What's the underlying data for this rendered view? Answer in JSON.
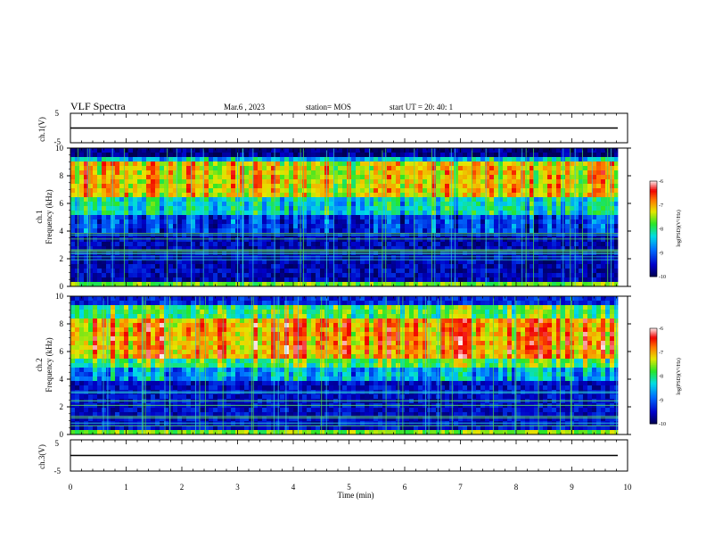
{
  "header": {
    "title": "VLF Spectra",
    "date": "Mar.6 , 2023",
    "station": "station= MOS",
    "start": "start UT = 20: 40: 1"
  },
  "chart_data": [
    {
      "type": "line",
      "name_label": "ch.1(V)",
      "ylabel": "ch.1(V)",
      "yticks": [
        "5",
        "-5"
      ],
      "ylim": [
        -5,
        5
      ],
      "xlim": [
        0,
        10
      ],
      "baseline": 0
    },
    {
      "type": "heatmap",
      "ylabel_top": "ch.1",
      "ylabel": "Frequency (kHz)",
      "yticks": [
        "0",
        "2",
        "4",
        "6",
        "8",
        "10"
      ],
      "ylim": [
        0,
        10
      ],
      "xlim": [
        0,
        10
      ],
      "colorbar": {
        "ticks": [
          "-6",
          "-7",
          "-8",
          "-9",
          "-10"
        ],
        "label": "log(PSD)(V²/Hz)",
        "range": [
          -10,
          -6
        ]
      },
      "bands": [
        {
          "from": 0,
          "to": 0.4,
          "level": -7.6
        },
        {
          "from": 0.4,
          "to": 4.0,
          "level": -9.6
        },
        {
          "from": 4.0,
          "to": 5.3,
          "level": -9.2
        },
        {
          "from": 5.3,
          "to": 6.5,
          "level": -8.3
        },
        {
          "from": 6.5,
          "to": 9.0,
          "level": -7.2
        },
        {
          "from": 9.0,
          "to": 9.5,
          "level": -8.5
        },
        {
          "from": 9.5,
          "to": 10,
          "level": -9.8
        }
      ]
    },
    {
      "type": "heatmap",
      "ylabel_top": "ch.2",
      "ylabel": "Frequency (kHz)",
      "yticks": [
        "0",
        "2",
        "4",
        "6",
        "8",
        "10"
      ],
      "ylim": [
        0,
        10
      ],
      "xlim": [
        0,
        10
      ],
      "colorbar": {
        "ticks": [
          "-6",
          "-7",
          "-8",
          "-9",
          "-10"
        ],
        "label": "log(PSD)(V²/Hz)",
        "range": [
          -10,
          -6
        ]
      },
      "bands": [
        {
          "from": 0,
          "to": 0.4,
          "level": -7.6
        },
        {
          "from": 0.4,
          "to": 3.8,
          "level": -9.5
        },
        {
          "from": 3.8,
          "to": 4.8,
          "level": -8.6
        },
        {
          "from": 4.8,
          "to": 5.6,
          "level": -7.8
        },
        {
          "from": 5.6,
          "to": 8.3,
          "level": -6.9
        },
        {
          "from": 8.3,
          "to": 9.2,
          "level": -7.8
        },
        {
          "from": 9.2,
          "to": 10,
          "level": -9.3
        }
      ]
    },
    {
      "type": "line",
      "name_label": "ch.3(V)",
      "ylabel": "ch.3(V)",
      "yticks": [
        "5",
        "-5"
      ],
      "ylim": [
        -5,
        5
      ],
      "xlim": [
        0,
        10
      ],
      "baseline": 0
    }
  ],
  "xaxis": {
    "label": "Time (min)",
    "ticks": [
      "0",
      "1",
      "2",
      "3",
      "4",
      "5",
      "6",
      "7",
      "8",
      "9",
      "10"
    ]
  }
}
